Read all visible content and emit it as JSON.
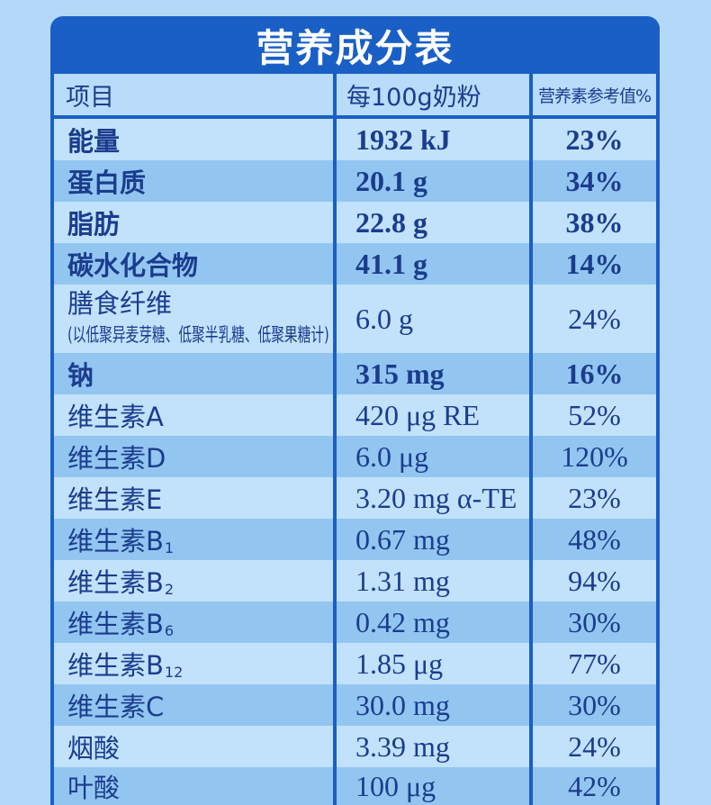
{
  "title": "营养成分表",
  "columns": {
    "item": "项目",
    "per_100g": "每100g奶粉",
    "nrv_percent": "营养素参考值%"
  },
  "rows": [
    {
      "name": "能量",
      "amount": "1932 kJ",
      "nrv": "23%"
    },
    {
      "name": "蛋白质",
      "amount": "20.1 g",
      "nrv": "34%"
    },
    {
      "name": "脂肪",
      "amount": "22.8 g",
      "nrv": "38%"
    },
    {
      "name": "碳水化合物",
      "amount": "41.1 g",
      "nrv": "14%"
    },
    {
      "name": "膳食纤维",
      "note": "(以低聚异麦芽糖、低聚半乳糖、低聚果糖计)",
      "amount": "6.0 g",
      "nrv": "24%"
    },
    {
      "name": "钠",
      "amount": "315 mg",
      "nrv": "16%"
    },
    {
      "name": "维生素A",
      "amount": "420 μg RE",
      "nrv": "52%"
    },
    {
      "name": "维生素D",
      "amount": "6.0 μg",
      "nrv": "120%"
    },
    {
      "name": "维生素E",
      "amount": "3.20 mg α-TE",
      "nrv": "23%"
    },
    {
      "name": "维生素B",
      "sub": "1",
      "amount": "0.67 mg",
      "nrv": "48%"
    },
    {
      "name": "维生素B",
      "sub": "2",
      "amount": "1.31 mg",
      "nrv": "94%"
    },
    {
      "name": "维生素B",
      "sub": "6",
      "amount": "0.42 mg",
      "nrv": "30%"
    },
    {
      "name": "维生素B",
      "sub": "12",
      "amount": "1.85 μg",
      "nrv": "77%"
    },
    {
      "name": "维生素C",
      "amount": "30.0 mg",
      "nrv": "30%"
    },
    {
      "name": "烟酸",
      "amount": "3.39 mg",
      "nrv": "24%"
    },
    {
      "name": "叶酸",
      "amount": "100 μg",
      "nrv": "42%"
    }
  ],
  "colors": {
    "page_background": "#b4d9f8",
    "brand_blue": "#1a5fc6",
    "row_light": "#c2e2fb",
    "row_dark": "#92c6f0",
    "header_row": "#b8dcf9",
    "text": "#1b3c8e",
    "title_text": "#ffffff"
  }
}
